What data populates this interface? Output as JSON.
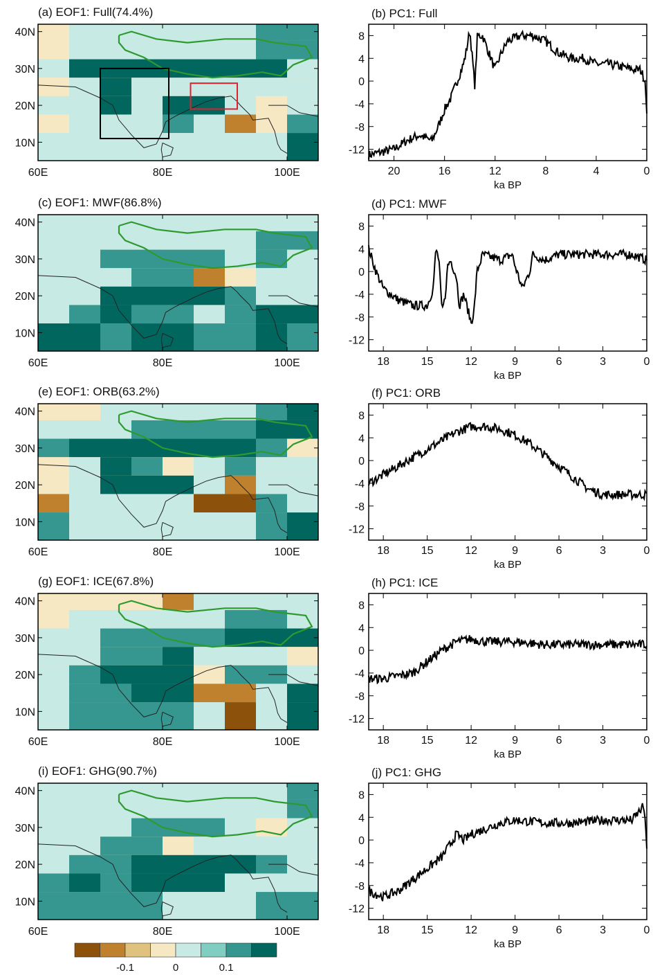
{
  "map_grid": {
    "cols_lon_start": 60,
    "cols_lon_step": 5,
    "n_cols": 9,
    "rows_lat_start": 40,
    "rows_lat_step": -5,
    "n_rows": 7,
    "note_levels": "-3..3 from strong brown to strong teal"
  },
  "colorbar": {
    "colors": [
      "#8c510a",
      "#bf812d",
      "#dfc27d",
      "#f6e8c3",
      "#c7eae5",
      "#80cdc1",
      "#35978f",
      "#01665e"
    ],
    "tick_labels": [
      "-0.1",
      "0",
      "0.1"
    ],
    "tick_values": [
      -0.1,
      0,
      0.1
    ]
  },
  "map_axes": {
    "lon_labels": [
      "60E",
      "80E",
      "100E"
    ],
    "lat_labels": [
      "40N",
      "30N",
      "20N",
      "10N"
    ]
  },
  "chart_data": [
    {
      "type": "heatmap",
      "panel": "a",
      "title": "(a) EOF1: Full(74.4%)",
      "grid": [
        [
          -1,
          1,
          1,
          1,
          1,
          1,
          1,
          2,
          2
        ],
        [
          -1,
          1,
          1,
          1,
          1,
          1,
          1,
          2,
          2
        ],
        [
          1,
          3,
          3,
          3,
          3,
          3,
          3,
          3,
          1
        ],
        [
          -1,
          1,
          3,
          1,
          1,
          1,
          1,
          1,
          1
        ],
        [
          1,
          1,
          3,
          1,
          3,
          3,
          1,
          -1,
          1
        ],
        [
          -1,
          1,
          1,
          1,
          2,
          1,
          -2,
          -1,
          2
        ],
        [
          1,
          1,
          1,
          1,
          1,
          1,
          1,
          1,
          3
        ]
      ]
    },
    {
      "type": "line",
      "panel": "b",
      "title": "(b) PC1: Full",
      "xlabel": "ka BP",
      "xlim": [
        22,
        0
      ],
      "ylim": [
        -14,
        10
      ],
      "xticks": [
        20,
        16,
        12,
        8,
        4,
        0
      ],
      "yticks": [
        8,
        4,
        0,
        -4,
        -8,
        -12
      ],
      "x": [
        22,
        21,
        20,
        19,
        18,
        17.5,
        17,
        16.5,
        16,
        15.5,
        15,
        14.5,
        14.3,
        14,
        13.8,
        13.6,
        13.4,
        13,
        12.5,
        12,
        11.5,
        11,
        10,
        9,
        8,
        7,
        6,
        5,
        4,
        3,
        2,
        1,
        0.5,
        0.1,
        0
      ],
      "y": [
        -13,
        -12.5,
        -12,
        -10.5,
        -9.5,
        -10,
        -10.5,
        -8,
        -5,
        -3,
        0,
        3,
        5,
        9,
        4,
        -1,
        8,
        8,
        5,
        2,
        5,
        7,
        8,
        8,
        7,
        5,
        4,
        4,
        3,
        3,
        2.5,
        2,
        2,
        0,
        -6
      ]
    },
    {
      "type": "heatmap",
      "panel": "c",
      "title": "(c) EOF1: MWF(86.8%)",
      "grid": [
        [
          1,
          1,
          1,
          1,
          1,
          1,
          1,
          1,
          1
        ],
        [
          1,
          1,
          1,
          1,
          1,
          1,
          1,
          2,
          2
        ],
        [
          1,
          1,
          2,
          2,
          2,
          2,
          1,
          2,
          1
        ],
        [
          1,
          1,
          1,
          2,
          2,
          -2,
          -1,
          1,
          1
        ],
        [
          1,
          1,
          3,
          3,
          3,
          3,
          2,
          1,
          1
        ],
        [
          1,
          2,
          3,
          2,
          2,
          1,
          2,
          3,
          3
        ],
        [
          3,
          3,
          2,
          3,
          3,
          2,
          2,
          3,
          2
        ]
      ]
    },
    {
      "type": "line",
      "panel": "d",
      "title": "(d) PC1: MWF",
      "xlabel": "ka BP",
      "xlim": [
        19,
        0
      ],
      "ylim": [
        -14,
        10
      ],
      "xticks": [
        18,
        15,
        12,
        9,
        6,
        3,
        0
      ],
      "yticks": [
        8,
        4,
        0,
        -4,
        -8,
        -12
      ],
      "x": [
        19,
        18.5,
        18,
        17,
        16,
        15,
        14.6,
        14.4,
        14.2,
        14,
        13.8,
        13.6,
        13.4,
        13,
        12.8,
        12.5,
        12,
        11.8,
        11.6,
        11.2,
        10,
        9.2,
        9,
        8.5,
        8,
        7.8,
        7,
        6,
        5,
        3,
        1,
        0
      ],
      "y": [
        4,
        0,
        -3,
        -5,
        -6,
        -6,
        -3,
        4,
        2,
        -7,
        -5,
        1,
        2,
        -1,
        -6,
        -4,
        -9,
        -7,
        0,
        3,
        2,
        3,
        1,
        -3,
        0,
        3,
        2,
        3,
        3,
        3,
        3,
        2
      ]
    },
    {
      "type": "heatmap",
      "panel": "e",
      "title": "(e) EOF1: ORB(63.2%)",
      "grid": [
        [
          -1,
          -1,
          1,
          1,
          1,
          1,
          1,
          2,
          3
        ],
        [
          1,
          1,
          1,
          2,
          2,
          2,
          2,
          3,
          3
        ],
        [
          2,
          3,
          3,
          3,
          3,
          3,
          3,
          2,
          -1
        ],
        [
          -1,
          1,
          3,
          2,
          -1,
          1,
          2,
          1,
          1
        ],
        [
          -1,
          1,
          3,
          3,
          3,
          1,
          -2,
          1,
          1
        ],
        [
          -2,
          1,
          1,
          1,
          1,
          -3,
          -3,
          2,
          1
        ],
        [
          2,
          1,
          1,
          1,
          1,
          1,
          1,
          2,
          3
        ]
      ]
    },
    {
      "type": "line",
      "panel": "f",
      "title": "(f) PC1: ORB",
      "xlabel": "ka BP",
      "xlim": [
        19,
        0
      ],
      "ylim": [
        -14,
        10
      ],
      "xticks": [
        18,
        15,
        12,
        9,
        6,
        3,
        0
      ],
      "yticks": [
        8,
        4,
        0,
        -4,
        -8,
        -12
      ],
      "x": [
        19,
        18,
        17,
        16,
        15,
        14,
        13,
        12,
        11,
        10,
        9,
        8,
        7,
        6,
        5,
        4,
        3,
        2,
        1,
        0
      ],
      "y": [
        -4,
        -2.5,
        -1,
        0.5,
        2,
        3.5,
        5,
        6,
        6,
        5.5,
        4.5,
        3,
        1,
        -1,
        -3,
        -5,
        -6,
        -6,
        -6,
        -6
      ]
    },
    {
      "type": "heatmap",
      "panel": "g",
      "title": "(g) EOF1: ICE(67.8%)",
      "grid": [
        [
          -1,
          -1,
          -1,
          -1,
          -2,
          1,
          1,
          1,
          1
        ],
        [
          -1,
          1,
          1,
          1,
          1,
          1,
          2,
          2,
          1
        ],
        [
          1,
          1,
          2,
          2,
          2,
          2,
          3,
          3,
          3
        ],
        [
          1,
          1,
          2,
          2,
          3,
          1,
          1,
          1,
          -1
        ],
        [
          1,
          2,
          3,
          3,
          3,
          -1,
          2,
          2,
          1
        ],
        [
          1,
          2,
          2,
          3,
          3,
          -2,
          -2,
          1,
          3
        ],
        [
          1,
          2,
          2,
          2,
          2,
          1,
          -3,
          1,
          3
        ]
      ]
    },
    {
      "type": "line",
      "panel": "h",
      "title": "(h) PC1: ICE",
      "xlabel": "ka BP",
      "xlim": [
        19,
        0
      ],
      "ylim": [
        -14,
        10
      ],
      "xticks": [
        18,
        15,
        12,
        9,
        6,
        3,
        0
      ],
      "yticks": [
        8,
        4,
        0,
        -4,
        -8,
        -12
      ],
      "x": [
        19,
        18,
        17,
        16,
        15,
        14,
        13,
        12,
        11,
        9,
        7,
        5,
        3,
        1,
        0
      ],
      "y": [
        -5,
        -5,
        -4.5,
        -4,
        -2,
        0,
        1.5,
        2,
        1.5,
        1.5,
        1,
        1,
        1,
        1,
        1
      ]
    },
    {
      "type": "heatmap",
      "panel": "i",
      "title": "(i) EOF1: GHG(90.7%)",
      "grid": [
        [
          1,
          1,
          1,
          1,
          1,
          1,
          1,
          1,
          2
        ],
        [
          1,
          1,
          1,
          1,
          1,
          1,
          1,
          1,
          2
        ],
        [
          1,
          1,
          1,
          2,
          2,
          2,
          1,
          -1,
          1
        ],
        [
          1,
          1,
          2,
          2,
          -1,
          1,
          1,
          1,
          1
        ],
        [
          1,
          2,
          2,
          3,
          3,
          3,
          3,
          2,
          1
        ],
        [
          2,
          3,
          2,
          3,
          3,
          3,
          1,
          1,
          1
        ],
        [
          2,
          2,
          2,
          2,
          1,
          1,
          1,
          2,
          2
        ]
      ]
    },
    {
      "type": "line",
      "panel": "j",
      "title": "(j) PC1: GHG",
      "xlabel": "ka BP",
      "xlim": [
        19,
        0
      ],
      "ylim": [
        -14,
        10
      ],
      "xticks": [
        18,
        15,
        12,
        9,
        6,
        3,
        0
      ],
      "yticks": [
        8,
        4,
        0,
        -4,
        -8,
        -12
      ],
      "x": [
        19,
        18,
        17,
        16,
        15,
        14,
        13.5,
        13,
        12.5,
        12,
        11,
        10,
        9,
        7,
        5,
        3,
        1,
        0.2,
        0
      ],
      "y": [
        -9,
        -10,
        -9,
        -7,
        -5,
        -3,
        -1,
        1,
        0,
        1,
        2,
        3,
        3.5,
        3,
        3,
        3.5,
        3.5,
        6,
        -1
      ]
    }
  ]
}
